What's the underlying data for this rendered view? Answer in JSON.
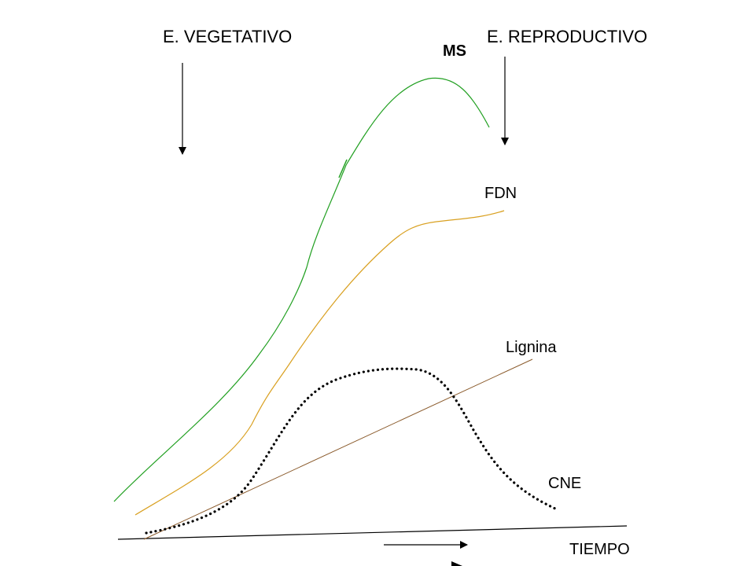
{
  "labels": {
    "vegetativo": "E. VEGETATIVO",
    "reproductivo": "E. REPRODUCTIVO",
    "ms": "MS",
    "fdn": "FDN",
    "lignina": "Lignina",
    "cne": "CNE",
    "tiempo": "TIEMPO"
  },
  "colors": {
    "ms_curve": "#22a022",
    "fdn_curve": "#d9a020",
    "lignina_line": "#8a5a2b",
    "cne_curve": "#000000",
    "axis": "#000000",
    "arrows": "#000000"
  }
}
